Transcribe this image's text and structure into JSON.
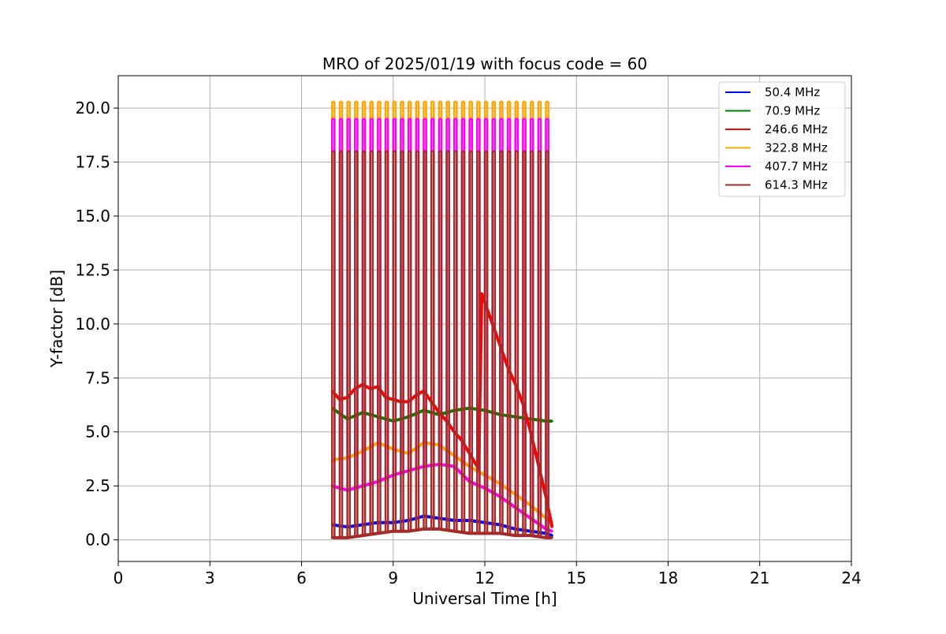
{
  "chart_data": {
    "type": "line",
    "title": "MRO of 2025/01/19 with focus code = 60",
    "xlabel": "Universal Time [h]",
    "ylabel": "Y-factor [dB]",
    "xlim": [
      0,
      24
    ],
    "ylim": [
      -1.0,
      21.5
    ],
    "xticks": [
      0,
      3,
      6,
      9,
      12,
      15,
      18,
      21,
      24
    ],
    "xtick_labels": [
      "0",
      "3",
      "6",
      "9",
      "12",
      "15",
      "18",
      "21",
      "24"
    ],
    "yticks": [
      0.0,
      2.5,
      5.0,
      7.5,
      10.0,
      12.5,
      15.0,
      17.5,
      20.0
    ],
    "ytick_labels": [
      "0.0",
      "2.5",
      "5.0",
      "7.5",
      "10.0",
      "12.5",
      "15.0",
      "17.5",
      "20.0"
    ],
    "grid": true,
    "legend_position": "top-right",
    "calibration_spikes": {
      "description_hidden": true,
      "times": [
        7.0,
        7.25,
        7.5,
        7.75,
        8.0,
        8.25,
        8.5,
        8.75,
        9.0,
        9.25,
        9.5,
        9.75,
        10.0,
        10.25,
        10.5,
        10.75,
        11.0,
        11.25,
        11.5,
        11.75,
        12.0,
        12.25,
        12.5,
        12.75,
        13.0,
        13.25,
        13.5,
        13.75,
        14.0
      ]
    },
    "series": [
      {
        "name": " 50.4 MHz",
        "color": "#0000ff",
        "x": [
          7.0,
          7.5,
          8.0,
          8.5,
          9.0,
          9.5,
          10.0,
          10.5,
          11.0,
          11.5,
          12.0,
          12.5,
          13.0,
          13.5,
          14.0,
          14.2
        ],
        "y": [
          0.7,
          0.6,
          0.7,
          0.8,
          0.8,
          0.9,
          1.1,
          1.0,
          0.9,
          0.9,
          0.8,
          0.7,
          0.5,
          0.4,
          0.3,
          0.2
        ],
        "spike_peak": null
      },
      {
        "name": " 70.9 MHz",
        "color": "#008000",
        "x": [
          7.0,
          7.5,
          8.0,
          8.5,
          9.0,
          9.5,
          10.0,
          10.5,
          11.0,
          11.5,
          12.0,
          12.5,
          13.0,
          13.5,
          14.0,
          14.2
        ],
        "y": [
          6.1,
          5.6,
          5.9,
          5.7,
          5.5,
          5.7,
          6.0,
          5.8,
          6.0,
          6.1,
          6.0,
          5.8,
          5.7,
          5.6,
          5.5,
          5.5
        ],
        "spike_peak": null
      },
      {
        "name": "246.6 MHz",
        "color": "#ff0000",
        "x": [
          7.0,
          7.25,
          7.5,
          7.75,
          8.0,
          8.25,
          8.5,
          8.75,
          9.0,
          9.25,
          9.5,
          9.75,
          10.0,
          10.25,
          10.5,
          10.75,
          11.0,
          11.25,
          11.5,
          11.75,
          11.8,
          11.9,
          12.0,
          12.25,
          12.5,
          12.75,
          13.0,
          13.25,
          13.5,
          13.75,
          14.0,
          14.2
        ],
        "y": [
          6.9,
          6.5,
          6.6,
          7.0,
          7.2,
          7.0,
          7.1,
          6.6,
          6.5,
          6.4,
          6.4,
          6.7,
          6.9,
          6.4,
          5.9,
          5.5,
          5.0,
          4.6,
          4.0,
          3.4,
          3.3,
          11.4,
          11.0,
          10.0,
          9.0,
          8.0,
          7.2,
          6.3,
          5.0,
          3.5,
          2.0,
          0.6
        ],
        "spike_peak": null
      },
      {
        "name": "322.8 MHz",
        "color": "#ffa500",
        "x": [
          7.0,
          7.5,
          8.0,
          8.5,
          9.0,
          9.5,
          10.0,
          10.5,
          11.0,
          11.5,
          12.0,
          12.5,
          13.0,
          13.5,
          14.0,
          14.2
        ],
        "y": [
          3.7,
          3.8,
          4.1,
          4.5,
          4.2,
          4.0,
          4.5,
          4.4,
          3.9,
          3.4,
          3.0,
          2.6,
          2.1,
          1.6,
          1.0,
          0.8
        ],
        "spike_peak": 20.3
      },
      {
        "name": "407.7 MHz",
        "color": "#ff00ff",
        "x": [
          7.0,
          7.5,
          8.0,
          8.5,
          9.0,
          9.5,
          10.0,
          10.5,
          11.0,
          11.5,
          12.0,
          12.5,
          13.0,
          13.5,
          14.0,
          14.2
        ],
        "y": [
          2.5,
          2.3,
          2.5,
          2.7,
          3.0,
          3.2,
          3.4,
          3.5,
          3.4,
          2.7,
          2.4,
          2.0,
          1.5,
          1.0,
          0.5,
          0.4
        ],
        "spike_peak": 19.5
      },
      {
        "name": "614.3 MHz",
        "color": "#a52a2a",
        "x": [
          7.0,
          7.5,
          8.0,
          8.5,
          9.0,
          9.5,
          10.0,
          10.5,
          11.0,
          11.5,
          12.0,
          12.5,
          13.0,
          13.5,
          14.0,
          14.2
        ],
        "y": [
          0.1,
          0.1,
          0.2,
          0.3,
          0.4,
          0.4,
          0.5,
          0.5,
          0.4,
          0.3,
          0.3,
          0.3,
          0.2,
          0.2,
          0.1,
          0.1
        ],
        "spike_peak": 18.0
      }
    ]
  }
}
